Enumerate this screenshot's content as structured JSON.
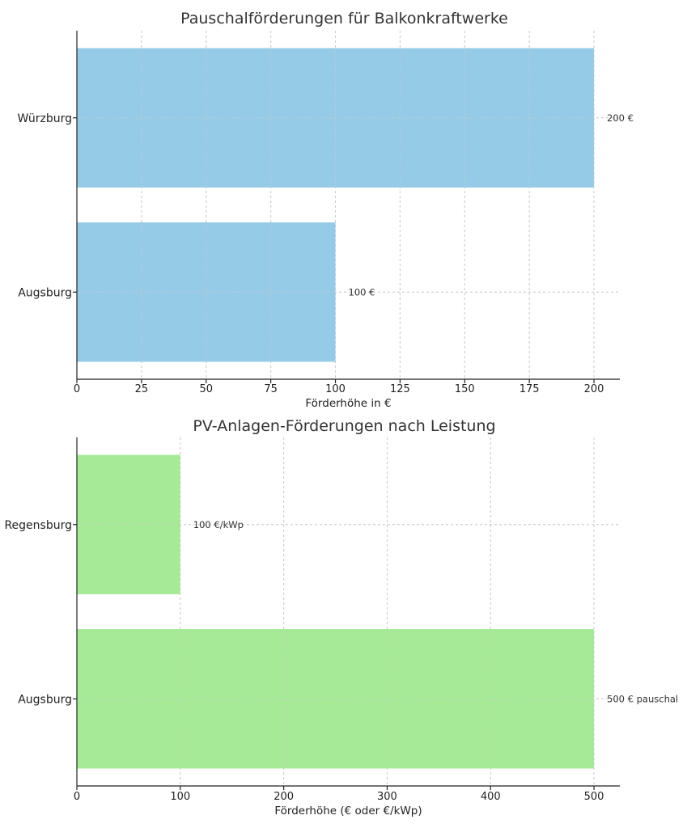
{
  "chart_data": [
    {
      "type": "bar",
      "orientation": "horizontal",
      "title": "Pauschalförderungen für Balkonkraftwerke",
      "xlabel": "Förderhöhe in €",
      "ylabel": "",
      "categories": [
        "Augsburg",
        "Würzburg"
      ],
      "values": [
        100,
        200
      ],
      "data_labels": [
        "100 €",
        "200 €"
      ],
      "xlim": [
        0,
        210
      ],
      "xticks": [
        0,
        25,
        50,
        75,
        100,
        125,
        150,
        175,
        200
      ],
      "xtick_labels": [
        "0",
        "25",
        "50",
        "75",
        "100",
        "125",
        "150",
        "175",
        "200"
      ],
      "bar_color": "#96cbe7",
      "grid": true,
      "legend": "none"
    },
    {
      "type": "bar",
      "orientation": "horizontal",
      "title": "PV-Anlagen-Förderungen nach Leistung",
      "xlabel": "Förderhöhe (€ oder €/kWp)",
      "ylabel": "",
      "categories": [
        "Augsburg",
        "Regensburg"
      ],
      "values": [
        500,
        100
      ],
      "data_labels": [
        "500 € pauschal",
        "100 €/kWp"
      ],
      "xlim": [
        0,
        525
      ],
      "xticks": [
        0,
        100,
        200,
        300,
        400,
        500
      ],
      "xtick_labels": [
        "0",
        "100",
        "200",
        "300",
        "400",
        "500"
      ],
      "bar_color": "#a6ea98",
      "grid": true,
      "legend": "none"
    }
  ]
}
